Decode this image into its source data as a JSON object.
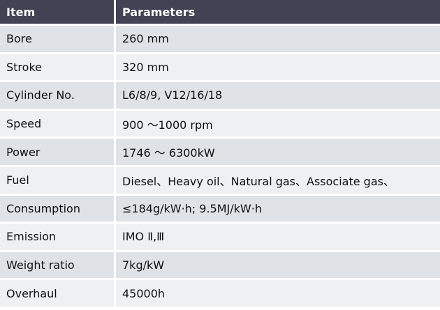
{
  "header": {
    "item": "Item",
    "parameters": "Parameters"
  },
  "rows": [
    {
      "item": "Bore",
      "value": "260 mm"
    },
    {
      "item": "Stroke",
      "value": "320 mm"
    },
    {
      "item": "Cylinder No.",
      "value": "L6/8/9, V12/16/18"
    },
    {
      "item": "Speed",
      "value": "900 ～1000 rpm"
    },
    {
      "item": "Power",
      "value": "1746 ～ 6300kW"
    },
    {
      "item": "Fuel",
      "value": "Diesel、Heavy oil、Natural gas、Associate gas、"
    },
    {
      "item": "Consumption",
      "value": "≤184g/kW·h;   9.5MJ/kW·h"
    },
    {
      "item": "Emission",
      "value": "IMO Ⅱ,Ⅲ"
    },
    {
      "item": "Weight ratio",
      "value": "7kg/kW"
    },
    {
      "item": "Overhaul",
      "value": "45000h"
    }
  ],
  "colors": {
    "header_bg": "#424254",
    "row_dark": "#dfe2e6",
    "row_light": "#eff0f2"
  }
}
